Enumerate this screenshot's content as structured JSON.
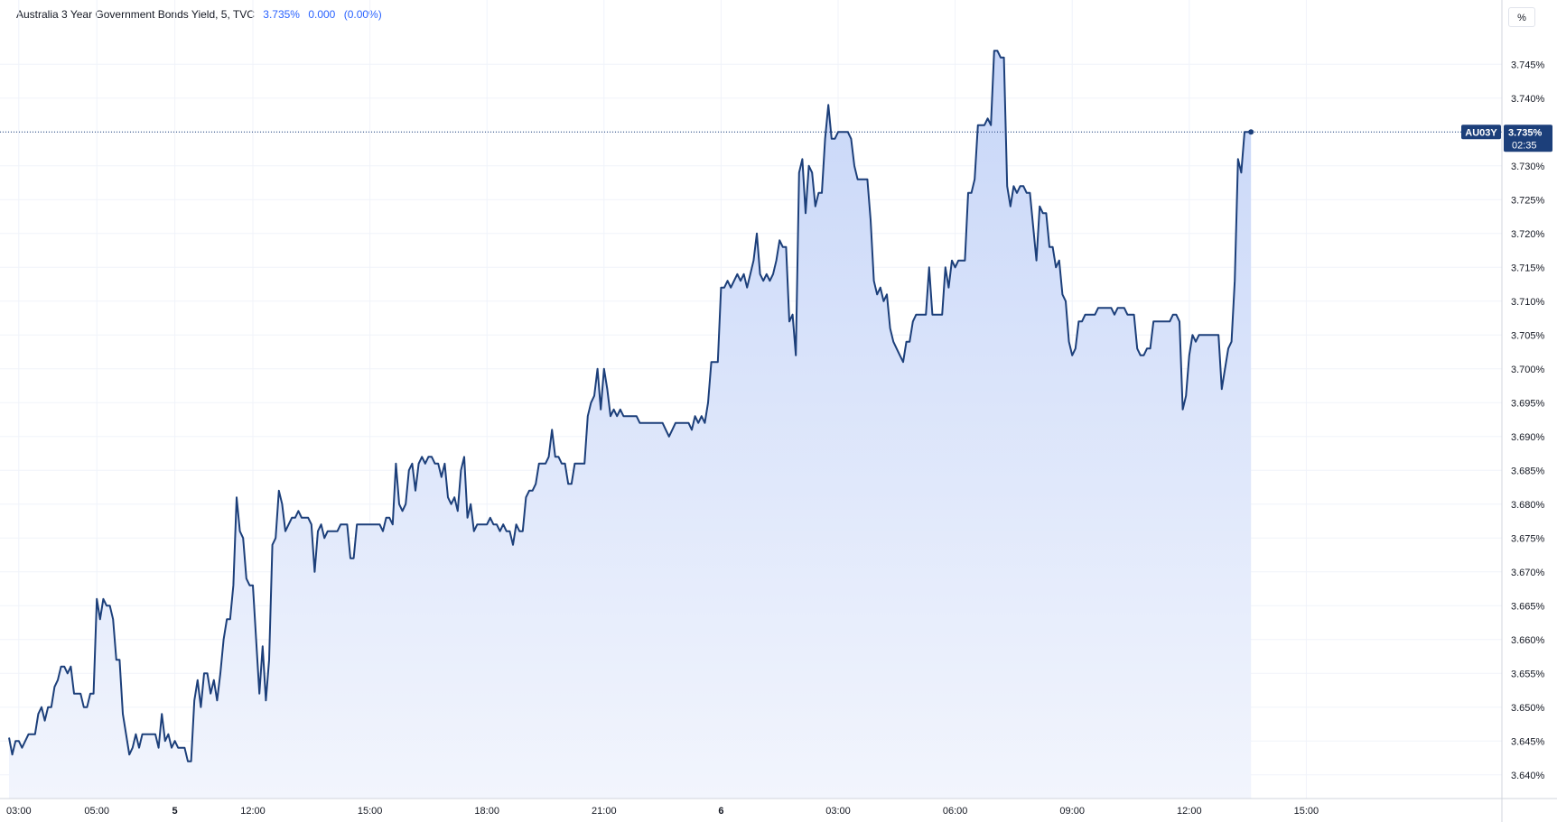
{
  "legend": {
    "title": "Australia 3 Year Government Bonds Yield, 5, TVC",
    "last_value": "3.735%",
    "change": "0.000",
    "change_pct": "(0.00%)"
  },
  "unit_label": "%",
  "colors": {
    "line": "#1c3f7a",
    "fill_top": "#c7d6f8",
    "fill_bottom": "#f2f5fd",
    "grid": "#f0f3fa",
    "tag_bg": "#1c3f7a"
  },
  "price_tag": {
    "symbol": "AU03Y",
    "price": "3.735%",
    "countdown": "02:35"
  },
  "chart_data": {
    "type": "area",
    "title": "Australia 3 Year Government Bonds Yield",
    "xlabel": "",
    "ylabel": "",
    "ylim": [
      3.6365,
      3.7545
    ],
    "y_ticks": [
      {
        "v": 3.64,
        "label": "3.640%"
      },
      {
        "v": 3.645,
        "label": "3.645%"
      },
      {
        "v": 3.65,
        "label": "3.650%"
      },
      {
        "v": 3.655,
        "label": "3.655%"
      },
      {
        "v": 3.66,
        "label": "3.660%"
      },
      {
        "v": 3.665,
        "label": "3.665%"
      },
      {
        "v": 3.67,
        "label": "3.670%"
      },
      {
        "v": 3.675,
        "label": "3.675%"
      },
      {
        "v": 3.68,
        "label": "3.680%"
      },
      {
        "v": 3.685,
        "label": "3.685%"
      },
      {
        "v": 3.69,
        "label": "3.690%"
      },
      {
        "v": 3.695,
        "label": "3.695%"
      },
      {
        "v": 3.7,
        "label": "3.700%"
      },
      {
        "v": 3.705,
        "label": "3.705%"
      },
      {
        "v": 3.71,
        "label": "3.710%"
      },
      {
        "v": 3.715,
        "label": "3.715%"
      },
      {
        "v": 3.72,
        "label": "3.720%"
      },
      {
        "v": 3.725,
        "label": "3.725%"
      },
      {
        "v": 3.73,
        "label": "3.730%"
      },
      {
        "v": 3.735,
        "label": "3.735%"
      },
      {
        "v": 3.74,
        "label": "3.740%"
      },
      {
        "v": 3.745,
        "label": "3.745%"
      }
    ],
    "x_ticks": [
      {
        "label": "03:00",
        "idx": 3,
        "day": false
      },
      {
        "label": "05:00",
        "idx": 27,
        "day": false
      },
      {
        "label": "5",
        "idx": 51,
        "day": true
      },
      {
        "label": "12:00",
        "idx": 75,
        "day": false
      },
      {
        "label": "15:00",
        "idx": 111,
        "day": false
      },
      {
        "label": "18:00",
        "idx": 147,
        "day": false
      },
      {
        "label": "21:00",
        "idx": 183,
        "day": false
      },
      {
        "label": "6",
        "idx": 219,
        "day": true
      },
      {
        "label": "03:00",
        "idx": 255,
        "day": false
      },
      {
        "label": "06:00",
        "idx": 291,
        "day": false
      },
      {
        "label": "09:00",
        "idx": 327,
        "day": false
      },
      {
        "label": "12:00",
        "idx": 363,
        "day": false
      },
      {
        "label": "15:00",
        "idx": 399,
        "day": false
      }
    ],
    "series": [
      {
        "values": [
          3.6455,
          3.643,
          3.645,
          3.645,
          3.644,
          3.645,
          3.646,
          3.646,
          3.646,
          3.649,
          3.65,
          3.648,
          3.65,
          3.65,
          3.653,
          3.654,
          3.656,
          3.656,
          3.655,
          3.656,
          3.652,
          3.652,
          3.652,
          3.65,
          3.65,
          3.652,
          3.652,
          3.666,
          3.663,
          3.666,
          3.665,
          3.665,
          3.663,
          3.657,
          3.657,
          3.649,
          3.646,
          3.643,
          3.644,
          3.646,
          3.644,
          3.646,
          3.646,
          3.646,
          3.646,
          3.646,
          3.644,
          3.649,
          3.645,
          3.646,
          3.644,
          3.645,
          3.644,
          3.644,
          3.644,
          3.642,
          3.642,
          3.651,
          3.654,
          3.65,
          3.655,
          3.655,
          3.652,
          3.654,
          3.651,
          3.655,
          3.66,
          3.663,
          3.663,
          3.668,
          3.681,
          3.676,
          3.675,
          3.669,
          3.668,
          3.668,
          3.66,
          3.652,
          3.659,
          3.651,
          3.657,
          3.674,
          3.675,
          3.682,
          3.68,
          3.676,
          3.677,
          3.678,
          3.678,
          3.679,
          3.678,
          3.678,
          3.678,
          3.677,
          3.67,
          3.676,
          3.677,
          3.675,
          3.676,
          3.676,
          3.676,
          3.676,
          3.677,
          3.677,
          3.677,
          3.672,
          3.672,
          3.677,
          3.677,
          3.677,
          3.677,
          3.677,
          3.677,
          3.677,
          3.677,
          3.676,
          3.678,
          3.678,
          3.677,
          3.686,
          3.68,
          3.679,
          3.68,
          3.685,
          3.686,
          3.682,
          3.686,
          3.687,
          3.686,
          3.687,
          3.687,
          3.686,
          3.686,
          3.684,
          3.686,
          3.681,
          3.68,
          3.681,
          3.679,
          3.685,
          3.687,
          3.678,
          3.68,
          3.676,
          3.677,
          3.677,
          3.677,
          3.677,
          3.678,
          3.677,
          3.677,
          3.676,
          3.677,
          3.676,
          3.676,
          3.674,
          3.677,
          3.676,
          3.676,
          3.681,
          3.682,
          3.682,
          3.683,
          3.686,
          3.686,
          3.686,
          3.687,
          3.691,
          3.687,
          3.687,
          3.686,
          3.686,
          3.683,
          3.683,
          3.686,
          3.686,
          3.686,
          3.686,
          3.693,
          3.695,
          3.696,
          3.7,
          3.694,
          3.7,
          3.697,
          3.693,
          3.694,
          3.693,
          3.694,
          3.693,
          3.693,
          3.693,
          3.693,
          3.693,
          3.692,
          3.692,
          3.692,
          3.692,
          3.692,
          3.692,
          3.692,
          3.692,
          3.691,
          3.69,
          3.691,
          3.692,
          3.692,
          3.692,
          3.692,
          3.692,
          3.691,
          3.693,
          3.692,
          3.693,
          3.692,
          3.695,
          3.701,
          3.701,
          3.701,
          3.712,
          3.712,
          3.713,
          3.712,
          3.713,
          3.714,
          3.713,
          3.714,
          3.712,
          3.714,
          3.716,
          3.72,
          3.714,
          3.713,
          3.714,
          3.713,
          3.714,
          3.716,
          3.719,
          3.718,
          3.718,
          3.707,
          3.708,
          3.702,
          3.729,
          3.731,
          3.723,
          3.73,
          3.729,
          3.724,
          3.726,
          3.726,
          3.734,
          3.739,
          3.734,
          3.734,
          3.735,
          3.735,
          3.735,
          3.735,
          3.734,
          3.73,
          3.728,
          3.728,
          3.728,
          3.728,
          3.722,
          3.713,
          3.711,
          3.712,
          3.71,
          3.711,
          3.706,
          3.704,
          3.703,
          3.702,
          3.701,
          3.704,
          3.704,
          3.707,
          3.708,
          3.708,
          3.708,
          3.708,
          3.715,
          3.708,
          3.708,
          3.708,
          3.708,
          3.715,
          3.712,
          3.716,
          3.715,
          3.716,
          3.716,
          3.716,
          3.726,
          3.726,
          3.728,
          3.736,
          3.736,
          3.736,
          3.737,
          3.736,
          3.747,
          3.747,
          3.746,
          3.746,
          3.727,
          3.724,
          3.727,
          3.726,
          3.727,
          3.727,
          3.726,
          3.726,
          3.721,
          3.716,
          3.724,
          3.723,
          3.723,
          3.718,
          3.718,
          3.715,
          3.716,
          3.711,
          3.71,
          3.704,
          3.702,
          3.703,
          3.707,
          3.707,
          3.708,
          3.708,
          3.708,
          3.708,
          3.709,
          3.709,
          3.709,
          3.709,
          3.709,
          3.708,
          3.709,
          3.709,
          3.709,
          3.708,
          3.708,
          3.708,
          3.703,
          3.702,
          3.702,
          3.703,
          3.703,
          3.707,
          3.707,
          3.707,
          3.707,
          3.707,
          3.707,
          3.708,
          3.708,
          3.707,
          3.694,
          3.696,
          3.702,
          3.705,
          3.704,
          3.705,
          3.705,
          3.705,
          3.705,
          3.705,
          3.705,
          3.705,
          3.697,
          3.7,
          3.703,
          3.704,
          3.713,
          3.731,
          3.729,
          3.735,
          3.735,
          3.735
        ]
      }
    ]
  }
}
